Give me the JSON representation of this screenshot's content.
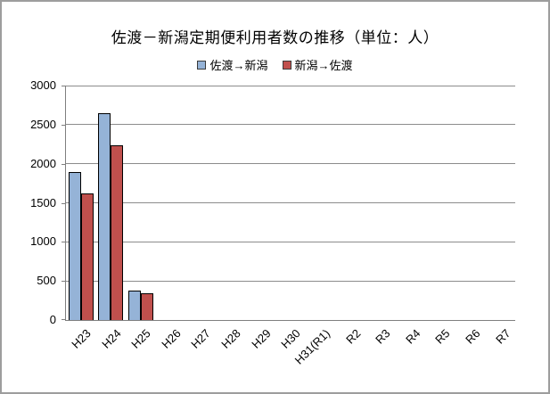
{
  "chart_data": {
    "type": "bar",
    "title": "佐渡－新潟定期便利用者数の推移（単位：人）",
    "categories": [
      "H23",
      "H24",
      "H25",
      "H26",
      "H27",
      "H28",
      "H29",
      "H30",
      "H31(R1)",
      "R2",
      "R3",
      "R4",
      "R5",
      "R6",
      "R7"
    ],
    "series": [
      {
        "name": "佐渡→新潟",
        "color": "#95B3D7",
        "values": [
          1890,
          2650,
          380,
          null,
          null,
          null,
          null,
          null,
          null,
          null,
          null,
          null,
          null,
          null,
          null
        ]
      },
      {
        "name": "新潟→佐渡",
        "color": "#C0504D",
        "values": [
          1620,
          2240,
          340,
          null,
          null,
          null,
          null,
          null,
          null,
          null,
          null,
          null,
          null,
          null,
          null
        ]
      }
    ],
    "ylabel": "",
    "xlabel": "",
    "ylim": [
      0,
      3000
    ],
    "yticks": [
      0,
      500,
      1000,
      1500,
      2000,
      2500,
      3000
    ],
    "grid": true,
    "legend_position": "top",
    "bar_border_color": "#000000"
  }
}
